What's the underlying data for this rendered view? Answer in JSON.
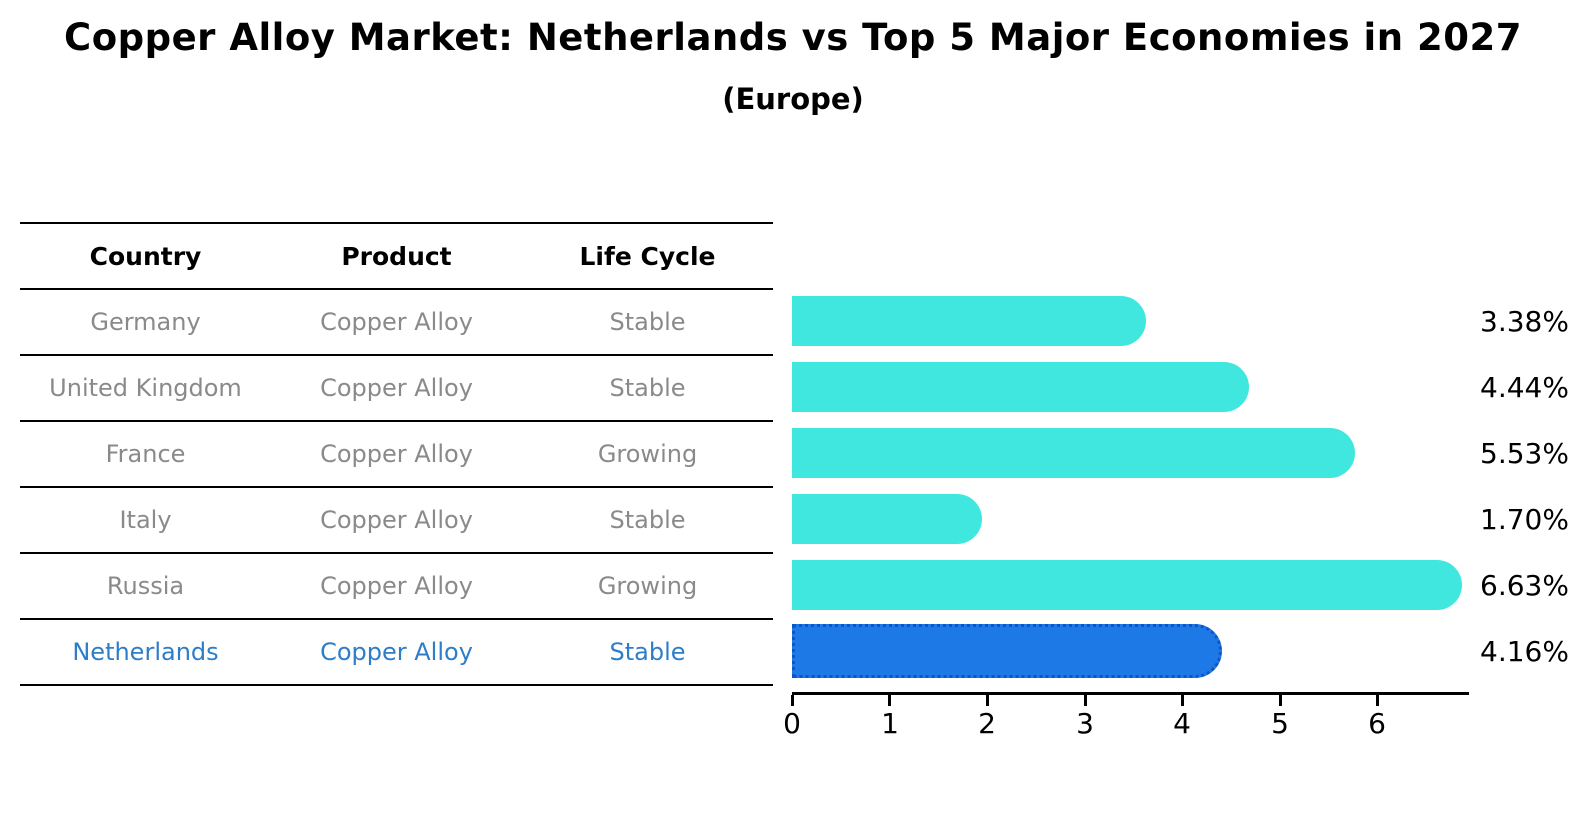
{
  "title": "Copper Alloy Market: Netherlands vs Top 5 Major Economies in 2027",
  "subtitle": "(Europe)",
  "table": {
    "headers": [
      "Country",
      "Product",
      "Life Cycle"
    ],
    "rows": [
      {
        "country": "Germany",
        "product": "Copper Alloy",
        "life_cycle": "Stable"
      },
      {
        "country": "United Kingdom",
        "product": "Copper Alloy",
        "life_cycle": "Stable"
      },
      {
        "country": "France",
        "product": "Copper Alloy",
        "life_cycle": "Growing"
      },
      {
        "country": "Italy",
        "product": "Copper Alloy",
        "life_cycle": "Stable"
      },
      {
        "country": "Russia",
        "product": "Copper Alloy",
        "life_cycle": "Growing"
      },
      {
        "country": "Netherlands",
        "product": "Copper Alloy",
        "life_cycle": "Stable"
      }
    ],
    "highlight_row": "Netherlands"
  },
  "chart_data": {
    "type": "bar",
    "orientation": "horizontal",
    "title": "Copper Alloy Market: Netherlands vs Top 5 Major Economies in 2027",
    "subtitle": "(Europe)",
    "categories": [
      "Germany",
      "United Kingdom",
      "France",
      "Italy",
      "Russia",
      "Netherlands"
    ],
    "values": [
      3.38,
      4.44,
      5.53,
      1.7,
      6.63,
      4.16
    ],
    "value_labels": [
      "3.38%",
      "4.44%",
      "5.53%",
      "1.70%",
      "6.63%",
      "4.16%"
    ],
    "xlim": [
      0,
      6.93
    ],
    "xticks": [
      "0",
      "1",
      "2",
      "3",
      "4",
      "5",
      "6"
    ],
    "grid": false,
    "legend": false,
    "bar_color": "#40e7de",
    "highlight_bar_color": "#1c79e6",
    "highlight_border_color": "#0e55c5",
    "highlight_index": 5
  },
  "colors": {
    "row_text": "#8a8a8a",
    "highlight_text": "#2e7dc9",
    "header_text": "#000000",
    "axis": "#000000"
  }
}
